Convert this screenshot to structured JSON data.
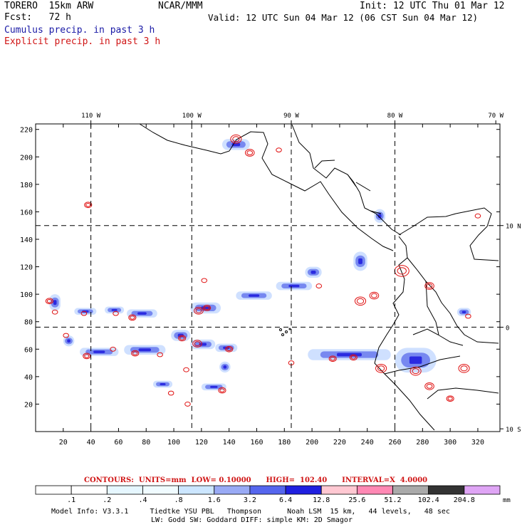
{
  "header": {
    "model": "TORERO  15km ARW",
    "center": "NCAR/MMM",
    "init": "Init: 12 UTC Thu 01 Mar 12",
    "fcst": "Fcst:   72 h",
    "valid": "Valid: 12 UTC Sun 04 Mar 12 (06 CST Sun 04 Mar 12)",
    "line_cumulus": "Cumulus precip. in past 3 h",
    "line_explicit": "Explicit precip. in past 3 h"
  },
  "chart_data": {
    "type": "heatmap",
    "title": "Cumulus precip. in past 3 h / Explicit precip. in past 3 h",
    "x_grid_ticks": [
      20,
      40,
      60,
      80,
      100,
      120,
      140,
      160,
      180,
      200,
      220,
      240,
      260,
      280,
      300,
      320
    ],
    "y_grid_ticks": [
      20,
      40,
      60,
      80,
      100,
      120,
      140,
      160,
      180,
      200,
      220
    ],
    "xlim": [
      0,
      336
    ],
    "ylim": [
      0,
      224
    ],
    "lon_labels": [
      {
        "label": "110 W",
        "x": 40
      },
      {
        "label": "100 W",
        "x": 113
      },
      {
        "label": "90 W",
        "x": 185
      },
      {
        "label": "80 W",
        "x": 260
      },
      {
        "label": "70 W",
        "x": 333
      }
    ],
    "lat_labels": [
      {
        "label": "10 N",
        "y": 150
      },
      {
        "label": "0",
        "y": 76
      },
      {
        "label": "10 S",
        "y": 2
      }
    ],
    "lon_lines_x": [
      40,
      113,
      185,
      260
    ],
    "lat_lines_y": [
      150,
      76
    ],
    "cumulus_areas": [
      {
        "x": 10,
        "y": 88,
        "w": 8,
        "h": 12
      },
      {
        "x": 28,
        "y": 85,
        "w": 16,
        "h": 5
      },
      {
        "x": 50,
        "y": 86,
        "w": 14,
        "h": 5
      },
      {
        "x": 66,
        "y": 83,
        "w": 22,
        "h": 6
      },
      {
        "x": 20,
        "y": 62,
        "w": 8,
        "h": 8
      },
      {
        "x": 32,
        "y": 55,
        "w": 28,
        "h": 6
      },
      {
        "x": 64,
        "y": 56,
        "w": 30,
        "h": 7
      },
      {
        "x": 98,
        "y": 66,
        "w": 14,
        "h": 8
      },
      {
        "x": 112,
        "y": 60,
        "w": 18,
        "h": 7
      },
      {
        "x": 130,
        "y": 58,
        "w": 16,
        "h": 6
      },
      {
        "x": 112,
        "y": 86,
        "w": 22,
        "h": 8
      },
      {
        "x": 145,
        "y": 96,
        "w": 26,
        "h": 6
      },
      {
        "x": 174,
        "y": 103,
        "w": 26,
        "h": 6
      },
      {
        "x": 195,
        "y": 112,
        "w": 12,
        "h": 8
      },
      {
        "x": 230,
        "y": 117,
        "w": 10,
        "h": 14
      },
      {
        "x": 197,
        "y": 52,
        "w": 60,
        "h": 8
      },
      {
        "x": 85,
        "y": 32,
        "w": 14,
        "h": 5
      },
      {
        "x": 120,
        "y": 30,
        "w": 18,
        "h": 5
      },
      {
        "x": 133,
        "y": 43,
        "w": 8,
        "h": 8
      },
      {
        "x": 305,
        "y": 84,
        "w": 10,
        "h": 6
      },
      {
        "x": 135,
        "y": 205,
        "w": 20,
        "h": 8
      },
      {
        "x": 245,
        "y": 152,
        "w": 8,
        "h": 10
      },
      {
        "x": 260,
        "y": 43,
        "w": 30,
        "h": 18
      }
    ],
    "explicit_cells": [
      {
        "x": 38,
        "y": 165,
        "r": 2
      },
      {
        "x": 10,
        "y": 95,
        "r": 2
      },
      {
        "x": 14,
        "y": 87,
        "r": 1.5
      },
      {
        "x": 35,
        "y": 86,
        "r": 1.5
      },
      {
        "x": 58,
        "y": 86,
        "r": 1.5
      },
      {
        "x": 70,
        "y": 83,
        "r": 2
      },
      {
        "x": 118,
        "y": 88,
        "r": 2.5
      },
      {
        "x": 124,
        "y": 90,
        "r": 2
      },
      {
        "x": 22,
        "y": 70,
        "r": 1.5
      },
      {
        "x": 37,
        "y": 55,
        "r": 2
      },
      {
        "x": 56,
        "y": 60,
        "r": 1.5
      },
      {
        "x": 72,
        "y": 57,
        "r": 2
      },
      {
        "x": 90,
        "y": 56,
        "r": 1.5
      },
      {
        "x": 106,
        "y": 68,
        "r": 2
      },
      {
        "x": 117,
        "y": 64,
        "r": 2.5
      },
      {
        "x": 140,
        "y": 60,
        "r": 2
      },
      {
        "x": 109,
        "y": 45,
        "r": 1.5
      },
      {
        "x": 110,
        "y": 20,
        "r": 1.5
      },
      {
        "x": 98,
        "y": 28,
        "r": 1.5
      },
      {
        "x": 135,
        "y": 30,
        "r": 2
      },
      {
        "x": 145,
        "y": 213,
        "r": 3
      },
      {
        "x": 155,
        "y": 203,
        "r": 2.5
      },
      {
        "x": 176,
        "y": 205,
        "r": 1.5
      },
      {
        "x": 122,
        "y": 110,
        "r": 1.5
      },
      {
        "x": 205,
        "y": 106,
        "r": 1.5
      },
      {
        "x": 235,
        "y": 95,
        "r": 3
      },
      {
        "x": 245,
        "y": 99,
        "r": 2.5
      },
      {
        "x": 265,
        "y": 117,
        "r": 4
      },
      {
        "x": 285,
        "y": 106,
        "r": 2.5
      },
      {
        "x": 250,
        "y": 46,
        "r": 3
      },
      {
        "x": 275,
        "y": 44,
        "r": 3
      },
      {
        "x": 285,
        "y": 33,
        "r": 2.5
      },
      {
        "x": 310,
        "y": 46,
        "r": 3
      },
      {
        "x": 300,
        "y": 24,
        "r": 2
      },
      {
        "x": 320,
        "y": 157,
        "r": 1.5
      },
      {
        "x": 313,
        "y": 84,
        "r": 1.5
      },
      {
        "x": 215,
        "y": 53,
        "r": 2
      },
      {
        "x": 230,
        "y": 54,
        "r": 2
      },
      {
        "x": 185,
        "y": 50,
        "r": 1.5
      }
    ]
  },
  "map": {
    "x_axis_labels": [
      "20",
      "40",
      "60",
      "80",
      "100",
      "120",
      "140",
      "160",
      "180",
      "200",
      "220",
      "240",
      "260",
      "280",
      "300",
      "320"
    ],
    "y_axis_labels": [
      "20",
      "40",
      "60",
      "80",
      "100",
      "120",
      "140",
      "160",
      "180",
      "200",
      "220"
    ]
  },
  "legend": {
    "contours_line": "CONTOURS:  UNITS=mm  LOW= 0.10000      HIGH=  102.40      INTERVAL=X  4.0000",
    "values": [
      ".1",
      ".2",
      ".4",
      ".8",
      "1.6",
      "3.2",
      "6.4",
      "12.8",
      "25.6",
      "51.2",
      "102.4",
      "204.8"
    ],
    "unit": "mm",
    "colors": [
      "#ffffff",
      "#ffffff",
      "#e6f7ff",
      "#f0fbff",
      "#cce6ff",
      "#99aaf5",
      "#5566ee",
      "#1f1fe0",
      "#ffc8d2",
      "#ff88b4",
      "#aaaaaa",
      "#333333",
      "#dfa5f5"
    ]
  },
  "footer": {
    "line1": "Model Info: V3.3.1     Tiedtke YSU PBL   Thompson      Noah LSM  15 km,   44 levels,   48 sec",
    "line2": "LW: Godd SW: Goddard DIFF: simple KM: 2D Smagor"
  }
}
